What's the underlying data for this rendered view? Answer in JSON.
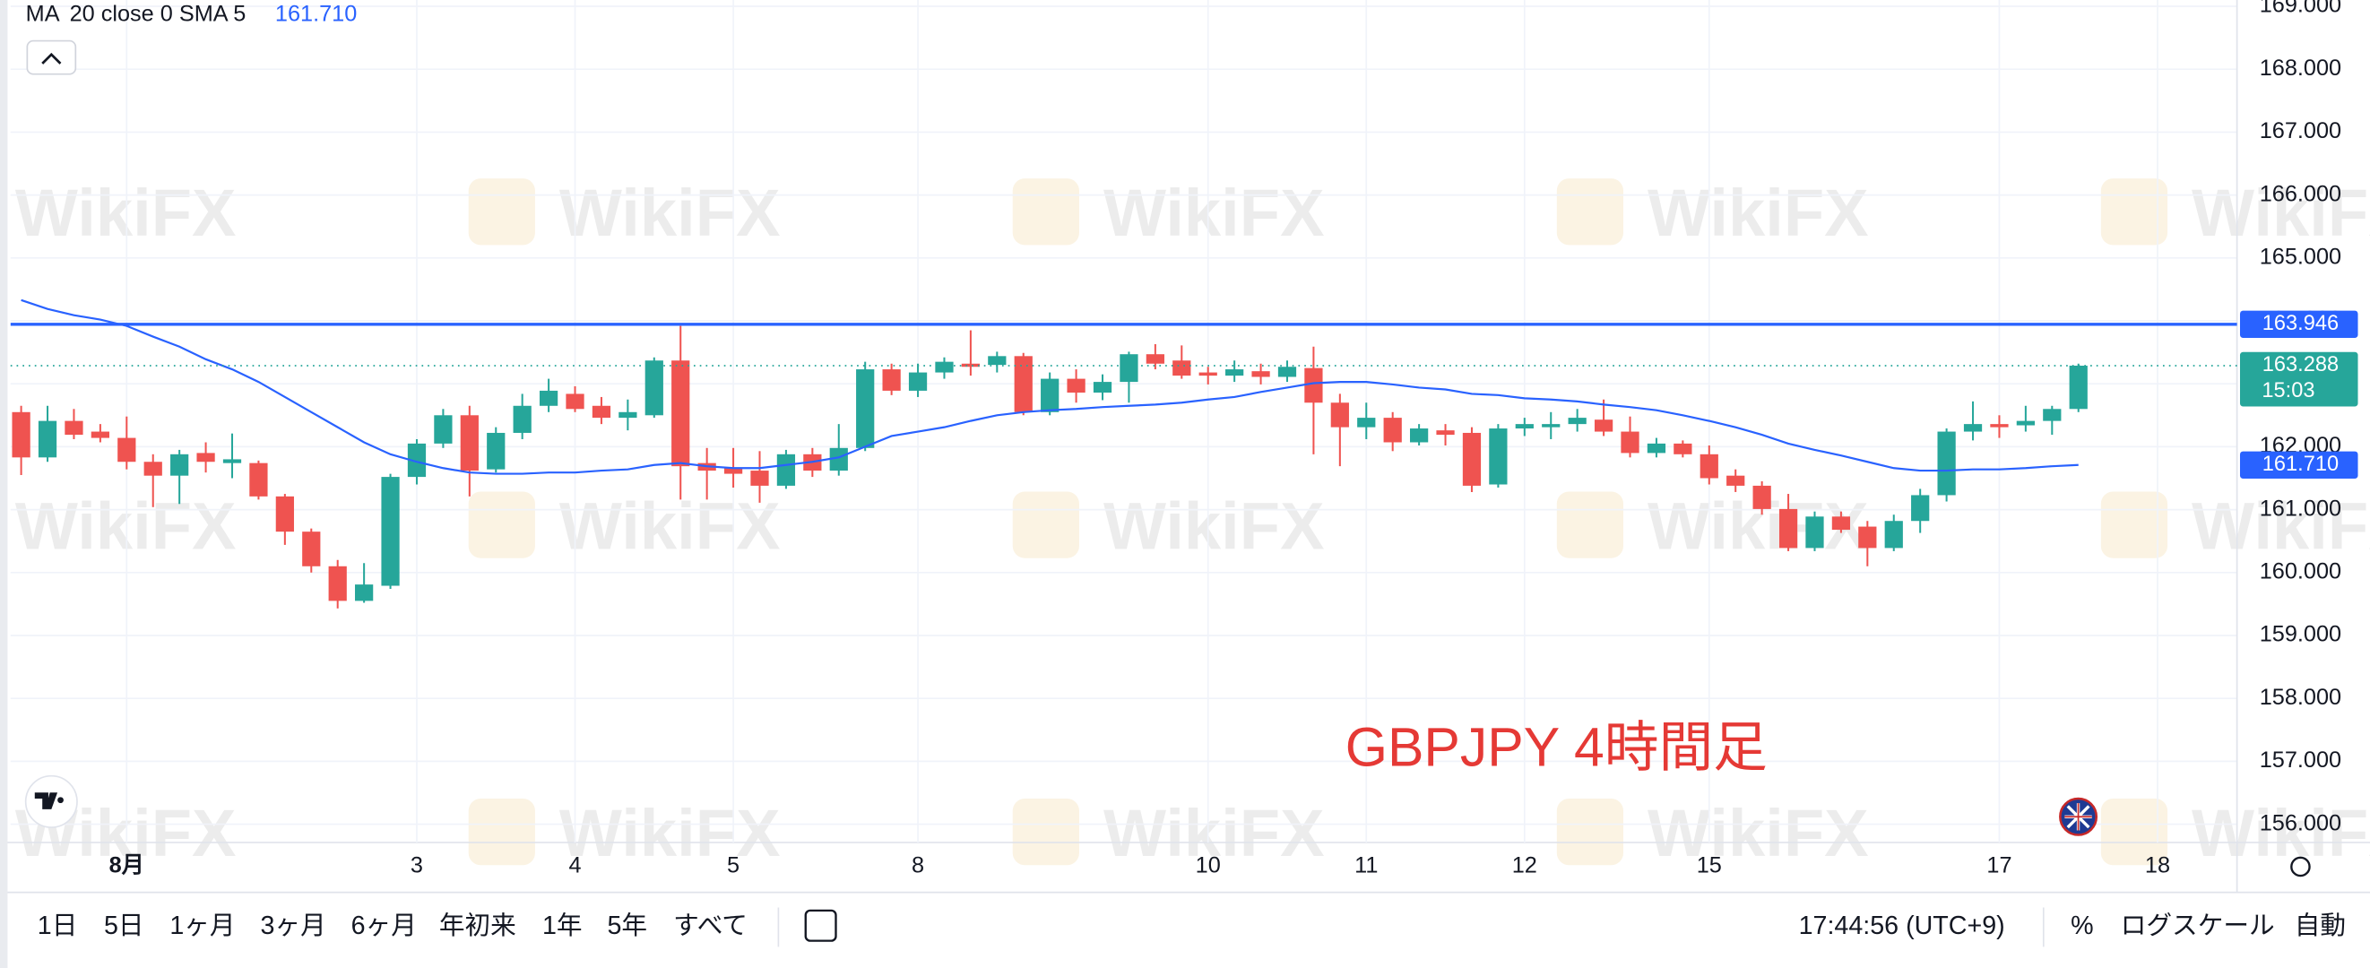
{
  "chart_data": {
    "type": "candlestick",
    "categories": [
      null,
      null,
      null,
      null,
      "8月",
      null,
      null,
      null,
      null,
      null,
      null,
      null,
      null,
      null,
      null,
      "3",
      null,
      null,
      null,
      null,
      null,
      "4",
      null,
      null,
      null,
      null,
      null,
      "5",
      null,
      null,
      null,
      null,
      null,
      null,
      "8",
      null,
      null,
      null,
      null,
      null,
      null,
      null,
      null,
      null,
      null,
      "10",
      null,
      null,
      null,
      null,
      null,
      "11",
      null,
      null,
      null,
      null,
      null,
      "12",
      null,
      null,
      null,
      null,
      null,
      null,
      "15",
      null,
      null,
      null,
      null,
      null,
      null,
      null,
      null,
      null,
      null,
      "17",
      null,
      null,
      null,
      null,
      null,
      "18"
    ],
    "open": [
      162.55,
      161.83,
      162.41,
      162.24,
      162.14,
      161.76,
      161.54,
      161.9,
      161.74,
      161.74,
      161.21,
      160.65,
      160.1,
      159.55,
      159.79,
      161.52,
      162.05,
      162.5,
      161.64,
      162.22,
      162.65,
      162.84,
      162.65,
      162.46,
      162.5,
      163.37,
      161.74,
      161.66,
      161.62,
      161.38,
      161.88,
      161.62,
      161.98,
      163.23,
      162.89,
      163.18,
      163.32,
      163.3,
      163.44,
      162.55,
      163.08,
      162.86,
      163.03,
      163.47,
      163.37,
      163.18,
      163.13,
      163.2,
      163.11,
      163.25,
      162.7,
      162.31,
      162.46,
      162.07,
      162.26,
      162.22,
      161.4,
      162.29,
      162.31,
      162.36,
      162.43,
      162.24,
      161.9,
      162.05,
      161.88,
      161.54,
      161.38,
      161.01,
      160.39,
      160.89,
      160.73,
      160.39,
      160.82,
      161.23,
      162.24,
      162.36,
      162.34,
      162.41,
      162.6,
      null,
      null,
      null
    ],
    "high": [
      162.65,
      162.65,
      162.6,
      162.36,
      162.48,
      161.88,
      161.95,
      162.07,
      162.21,
      161.78,
      161.25,
      160.7,
      160.2,
      160.15,
      161.57,
      162.12,
      162.6,
      162.65,
      162.31,
      162.84,
      163.08,
      162.96,
      162.79,
      162.75,
      163.42,
      163.92,
      161.98,
      161.98,
      161.93,
      161.95,
      161.98,
      162.36,
      163.35,
      163.32,
      163.32,
      163.42,
      163.85,
      163.51,
      163.49,
      163.18,
      163.23,
      163.15,
      163.51,
      163.63,
      163.61,
      163.27,
      163.37,
      163.32,
      163.37,
      163.59,
      162.84,
      162.7,
      162.55,
      162.36,
      162.36,
      162.31,
      162.36,
      162.46,
      162.55,
      162.6,
      162.75,
      162.48,
      162.14,
      162.1,
      162.02,
      161.64,
      161.45,
      161.25,
      160.97,
      160.97,
      160.82,
      160.92,
      161.33,
      162.29,
      162.72,
      162.5,
      162.65,
      162.65,
      163.32,
      null,
      null,
      null
    ],
    "low": [
      161.55,
      161.76,
      162.12,
      162.07,
      161.64,
      161.04,
      161.09,
      161.59,
      161.5,
      161.16,
      160.44,
      160.0,
      159.43,
      159.52,
      159.74,
      161.4,
      161.98,
      161.21,
      161.59,
      162.12,
      162.55,
      162.55,
      162.36,
      162.26,
      162.46,
      161.16,
      161.16,
      161.35,
      161.11,
      161.33,
      161.52,
      161.54,
      161.93,
      162.82,
      162.79,
      163.08,
      163.13,
      163.18,
      162.5,
      162.5,
      162.7,
      162.74,
      162.7,
      163.23,
      163.08,
      162.99,
      163.03,
      162.99,
      163.03,
      161.88,
      161.69,
      162.12,
      161.93,
      162.02,
      162.02,
      161.28,
      161.35,
      162.17,
      162.12,
      162.24,
      162.17,
      161.83,
      161.83,
      161.83,
      161.4,
      161.28,
      160.92,
      160.34,
      160.34,
      160.63,
      160.1,
      160.34,
      160.63,
      161.13,
      162.1,
      162.14,
      162.24,
      162.19,
      162.55,
      null,
      null,
      null
    ],
    "close": [
      161.83,
      162.41,
      162.19,
      162.14,
      161.76,
      161.54,
      161.88,
      161.76,
      161.8,
      161.21,
      160.65,
      160.1,
      159.55,
      159.81,
      161.52,
      162.05,
      162.5,
      161.62,
      162.22,
      162.65,
      162.89,
      162.6,
      162.46,
      162.55,
      163.37,
      161.69,
      161.62,
      161.57,
      161.38,
      161.88,
      161.62,
      161.98,
      163.23,
      162.89,
      163.18,
      163.35,
      163.27,
      163.44,
      162.55,
      163.08,
      162.86,
      163.03,
      163.47,
      163.32,
      163.13,
      163.13,
      163.23,
      163.11,
      163.27,
      162.7,
      162.31,
      162.46,
      162.07,
      162.29,
      162.19,
      161.38,
      162.29,
      162.36,
      162.36,
      162.46,
      162.24,
      161.9,
      162.05,
      161.88,
      161.5,
      161.38,
      161.01,
      160.39,
      160.89,
      160.68,
      160.39,
      160.82,
      161.23,
      162.24,
      162.36,
      162.31,
      162.41,
      162.6,
      163.288,
      null,
      null,
      null
    ],
    "up_color": "#26a69a",
    "down_color": "#ef5350",
    "close_label": "163.288",
    "countdown": "15:03",
    "ma": {
      "name": "MA",
      "params": "20 close 0 SMA 5",
      "color": "#2962ff",
      "value_label": "161.710",
      "values": [
        164.33,
        164.19,
        164.09,
        164.02,
        163.92,
        163.75,
        163.59,
        163.39,
        163.23,
        163.03,
        162.79,
        162.55,
        162.31,
        162.07,
        161.88,
        161.76,
        161.66,
        161.59,
        161.57,
        161.57,
        161.59,
        161.59,
        161.62,
        161.64,
        161.71,
        161.74,
        161.69,
        161.66,
        161.66,
        161.71,
        161.76,
        161.83,
        162.0,
        162.17,
        162.24,
        162.31,
        162.41,
        162.5,
        162.55,
        162.58,
        162.6,
        162.63,
        162.65,
        162.67,
        162.7,
        162.75,
        162.79,
        162.87,
        162.94,
        163.01,
        163.03,
        163.03,
        162.99,
        162.94,
        162.91,
        162.84,
        162.82,
        162.77,
        162.75,
        162.72,
        162.67,
        162.63,
        162.58,
        162.5,
        162.41,
        162.31,
        162.19,
        162.05,
        161.95,
        161.86,
        161.76,
        161.66,
        161.62,
        161.62,
        161.64,
        161.64,
        161.66,
        161.69,
        161.71,
        null,
        null,
        null
      ]
    },
    "hline": {
      "value": 163.946,
      "label": "163.946",
      "color": "#2962ff"
    },
    "ylim": [
      155.71,
      169.1
    ],
    "yticks": [
      {
        "value": 169,
        "label": "169.000"
      },
      {
        "value": 168,
        "label": "168.000"
      },
      {
        "value": 167,
        "label": "167.000"
      },
      {
        "value": 166,
        "label": "166.000"
      },
      {
        "value": 165,
        "label": "165.000"
      },
      {
        "value": 164,
        "label": "164.000"
      },
      {
        "value": 163,
        "label": "163.000"
      },
      {
        "value": 162,
        "label": "162.000"
      },
      {
        "value": 161,
        "label": "161.000"
      },
      {
        "value": 160,
        "label": "160.000"
      },
      {
        "value": 159,
        "label": "159.000"
      },
      {
        "value": 158,
        "label": "158.000"
      },
      {
        "value": 157,
        "label": "157.000"
      },
      {
        "value": 156,
        "label": "156.000"
      }
    ],
    "grid": true,
    "annotation": "GBPJPY 4時間足",
    "watermark": "WikiFX"
  },
  "toolbar": {
    "ranges": [
      "1日",
      "5日",
      "1ヶ月",
      "3ヶ月",
      "6ヶ月",
      "年初来",
      "1年",
      "5年",
      "すべて"
    ],
    "time": "17:44:56 (UTC+9)",
    "percent": "%",
    "log_scale": "ログスケール",
    "auto": "自動"
  }
}
